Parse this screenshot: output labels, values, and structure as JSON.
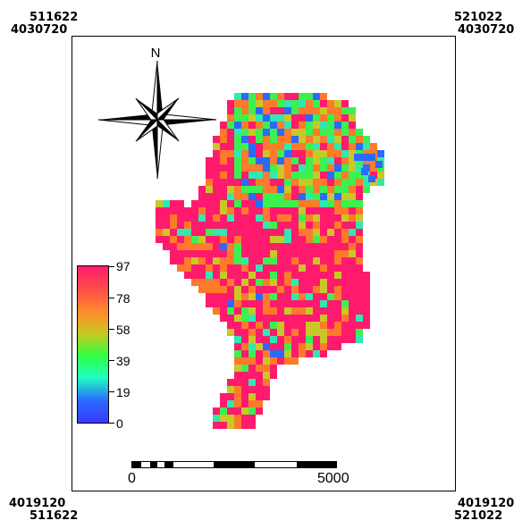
{
  "corners": {
    "top_left": {
      "x": "511622",
      "y": "4030720"
    },
    "top_right": {
      "x": "521022",
      "y": "4030720"
    },
    "bottom_left": {
      "x": "511622",
      "y": "4019120"
    },
    "bottom_right": {
      "x": "521022",
      "y": "4019120"
    }
  },
  "north_arrow": {
    "label": "N",
    "icon": "compass-rose-icon"
  },
  "legend": {
    "labels": [
      "97",
      "78",
      "58",
      "39",
      "19",
      "0"
    ],
    "colors": [
      "#ff1a6e",
      "#ff4a4a",
      "#ff8a2a",
      "#c8c820",
      "#30ff40",
      "#20ffc0",
      "#2a6aff",
      "#3a3aff"
    ]
  },
  "scale_bar": {
    "start": "0",
    "end": "5000"
  },
  "map": {
    "colors": {
      "pink": "#ff1a6e",
      "orange": "#ff7a2a",
      "yellow": "#c8c828",
      "green": "#3cf050",
      "cyan": "#30e8b0",
      "blue": "#2a6aff"
    }
  }
}
